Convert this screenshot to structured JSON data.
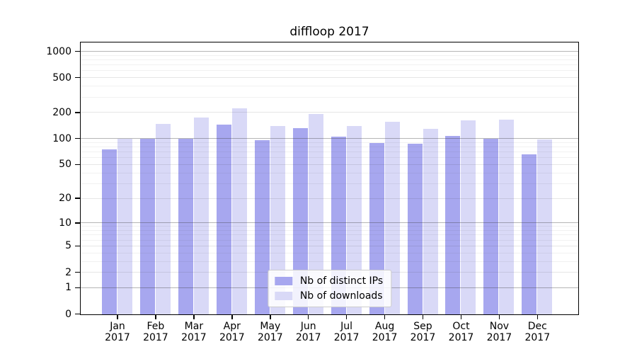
{
  "chart_data": {
    "type": "bar",
    "title": "diffloop 2017",
    "categories": [
      "Jan 2017",
      "Feb 2017",
      "Mar 2017",
      "Apr 2017",
      "May 2017",
      "Jun 2017",
      "Jul 2017",
      "Aug 2017",
      "Sep 2017",
      "Oct 2017",
      "Nov 2017",
      "Dec 2017"
    ],
    "series": [
      {
        "name": "Nb of distinct IPs",
        "color": "#a7a7ef",
        "values": [
          76,
          100,
          101,
          147,
          97,
          134,
          107,
          89,
          88,
          108,
          101,
          66
        ]
      },
      {
        "name": "Nb of downloads",
        "color": "#d9d9f7",
        "values": [
          101,
          150,
          175,
          226,
          142,
          195,
          142,
          157,
          130,
          165,
          168,
          98
        ]
      }
    ],
    "xlabel": "",
    "ylabel": "",
    "yscale": "log10(value+1)",
    "yticks": [
      1000,
      500,
      200,
      100,
      50,
      20,
      10,
      5,
      2,
      1,
      0
    ],
    "ylim": [
      0,
      1310
    ],
    "grid": true,
    "legend_position": "lower center"
  }
}
